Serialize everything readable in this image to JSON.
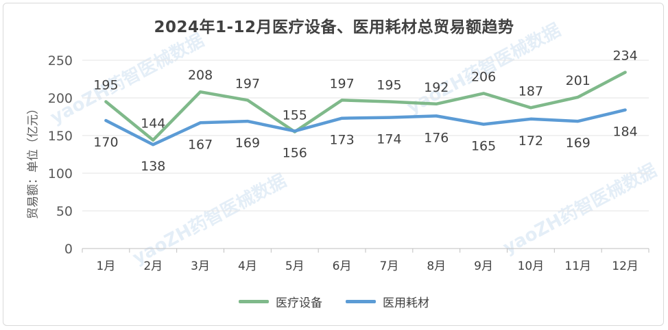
{
  "chart_data": {
    "type": "line",
    "title": "2024年1-12月医疗设备、医用耗材总贸易额趋势",
    "ylabel": "贸易额：单位（亿元）",
    "xlabel": "",
    "categories": [
      "1月",
      "2月",
      "3月",
      "4月",
      "5月",
      "6月",
      "7月",
      "8月",
      "9月",
      "10月",
      "11月",
      "12月"
    ],
    "ylim": [
      0,
      250
    ],
    "yticks": [
      0,
      50,
      100,
      150,
      200,
      250
    ],
    "grid": true,
    "legend_position": "bottom",
    "series": [
      {
        "name": "医疗设备",
        "color": "#7fb98a",
        "label_side": "above",
        "values": [
          195,
          144,
          208,
          197,
          155,
          197,
          195,
          192,
          206,
          187,
          201,
          234
        ]
      },
      {
        "name": "医用耗材",
        "color": "#5b9bd5",
        "label_side": "below",
        "values": [
          170,
          138,
          167,
          169,
          156,
          173,
          174,
          176,
          165,
          172,
          169,
          184
        ]
      }
    ]
  },
  "watermark_text": "yaoZH药智医械数据"
}
